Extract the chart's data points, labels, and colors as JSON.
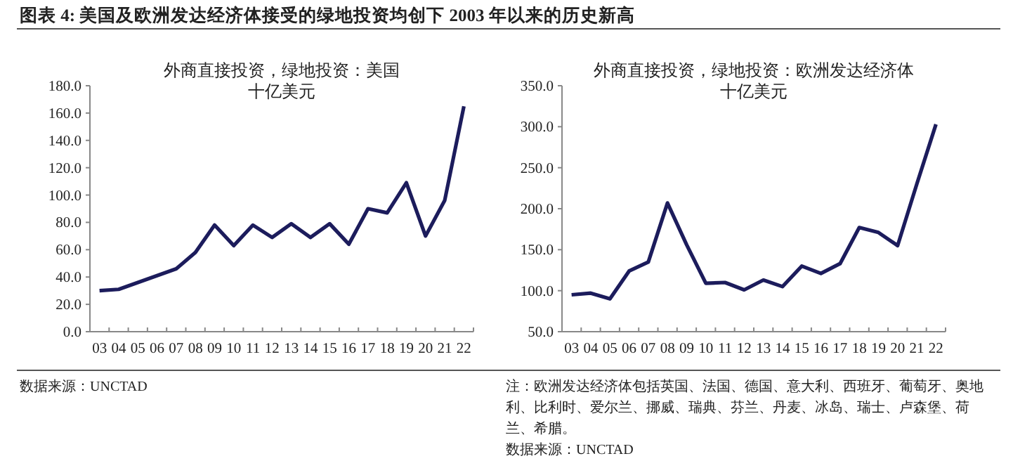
{
  "chart_data": [
    {
      "type": "line",
      "title": "外商直接投资，绿地投资：美国",
      "subtitle": "十亿美元",
      "annotations": [
        "图表 4: 美国及欧洲发达经济体接受的绿地投资均创下 2003 年以来的历史新高",
        "数据来源：UNCTAD"
      ],
      "categories": [
        "03",
        "04",
        "05",
        "06",
        "07",
        "08",
        "09",
        "10",
        "11",
        "12",
        "13",
        "14",
        "15",
        "16",
        "17",
        "18",
        "19",
        "20",
        "21",
        "22"
      ],
      "series": [
        {
          "color": "#1c1c5c",
          "values": [
            30,
            31,
            36,
            41,
            46,
            58,
            78,
            63,
            78,
            69,
            79,
            69,
            79,
            64,
            90,
            87,
            109,
            70,
            96,
            165
          ]
        }
      ],
      "ylim": [
        0,
        180
      ],
      "yticks": [
        {
          "value": 0,
          "label": "0.0"
        },
        {
          "value": 20,
          "label": "20.0"
        },
        {
          "value": 40,
          "label": "40.0"
        },
        {
          "value": 60,
          "label": "60.0"
        },
        {
          "value": 80,
          "label": "80.0"
        },
        {
          "value": 100,
          "label": "100.0"
        },
        {
          "value": 120,
          "label": "120.0"
        },
        {
          "value": 140,
          "label": "140.0"
        },
        {
          "value": 160,
          "label": "160.0"
        },
        {
          "value": 180,
          "label": "180.0"
        }
      ],
      "grid": false
    },
    {
      "type": "line",
      "title": "外商直接投资，绿地投资：欧洲发达经济体",
      "subtitle": "十亿美元",
      "annotations": [
        "注：欧洲发达经济体包括英国、法国、德国、意大利、西班牙、葡萄牙、奥地利、比利时、爱尔兰、挪威、瑞典、芬兰、丹麦、冰岛、瑞士、卢森堡、荷兰、希腊。",
        "数据来源：UNCTAD"
      ],
      "categories": [
        "03",
        "04",
        "05",
        "06",
        "07",
        "08",
        "09",
        "10",
        "11",
        "12",
        "13",
        "14",
        "15",
        "16",
        "17",
        "18",
        "19",
        "20",
        "21",
        "22"
      ],
      "series": [
        {
          "color": "#1c1c5c",
          "values": [
            95,
            97,
            90,
            124,
            135,
            207,
            156,
            109,
            110,
            101,
            113,
            105,
            130,
            121,
            133,
            177,
            171,
            155,
            230,
            303
          ]
        }
      ],
      "ylim": [
        50,
        350
      ],
      "yticks": [
        {
          "value": 50,
          "label": "50.0"
        },
        {
          "value": 100,
          "label": "100.0"
        },
        {
          "value": 150,
          "label": "150.0"
        },
        {
          "value": 200,
          "label": "200.0"
        },
        {
          "value": 250,
          "label": "250.0"
        },
        {
          "value": 300,
          "label": "300.0"
        },
        {
          "value": 350,
          "label": "350.0"
        }
      ],
      "grid": false
    }
  ]
}
